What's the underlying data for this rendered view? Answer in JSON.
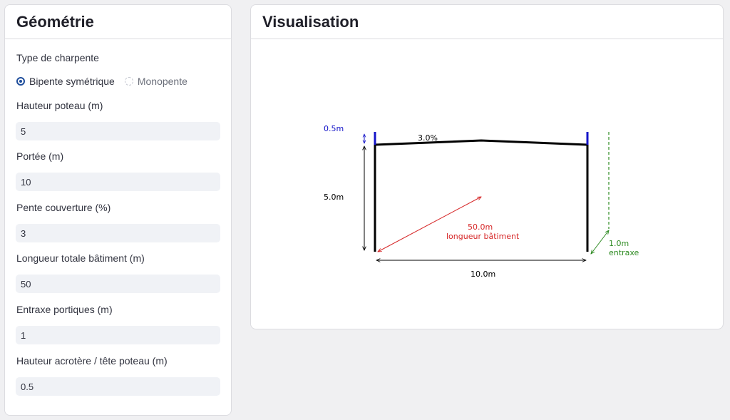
{
  "geometry_panel": {
    "title": "Géométrie",
    "roof_type": {
      "label": "Type de charpente",
      "options": [
        "Bipente symétrique",
        "Monopente"
      ],
      "selected": "Bipente symétrique"
    },
    "fields": [
      {
        "label": "Hauteur poteau (m)",
        "value": "5"
      },
      {
        "label": "Portée (m)",
        "value": "10"
      },
      {
        "label": "Pente couverture (%)",
        "value": "3"
      },
      {
        "label": "Longueur totale bâtiment (m)",
        "value": "50"
      },
      {
        "label": "Entraxe portiques (m)",
        "value": "1"
      },
      {
        "label": "Hauteur acrotère / tête poteau (m)",
        "value": "0.5"
      }
    ]
  },
  "visualisation_panel": {
    "title": "Visualisation",
    "diagram": {
      "acroterion_label": "0.5m",
      "slope_label": "3.0%",
      "height_label": "5.0m",
      "length_label": "50.0m",
      "length_caption": "longueur bâtiment",
      "span_label": "10.0m",
      "spacing_label": "1.0m",
      "spacing_caption": "entraxe",
      "colors": {
        "frame": "#000000",
        "acroterion": "#1414c8",
        "length": "#d62728",
        "spacing": "#2e8b22"
      }
    }
  }
}
